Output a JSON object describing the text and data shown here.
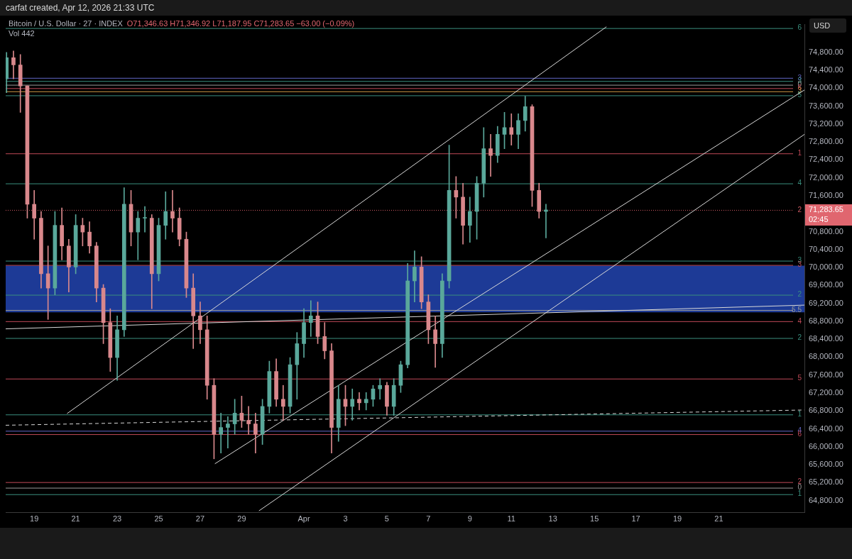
{
  "chart_data": {
    "type": "candlestick",
    "title": "Bitcoin / U.S. Dollar · 27 · INDEX",
    "subtitle": "O71,346.63 H71,346.92 L71,187.95 C71,283.65 −63.00 (−0.09%)",
    "ylabel": "USD",
    "annotations": [
      "carfat created, Apr 12, 2026 21:33 UTC",
      "Vol 442",
      "71,283.65",
      "02:45",
      "6",
      "3",
      "3",
      "0",
      "6",
      "3",
      "5",
      "1",
      "4",
      "2",
      "3",
      "3",
      "2",
      "5.5",
      "4",
      "2",
      "5",
      "1",
      "4",
      "6",
      "2",
      "0",
      "1"
    ],
    "x": [
      "2026-03-17T16:00",
      "2026-03-18T00:00",
      "2026-03-18T08:00",
      "2026-03-18T16:00",
      "2026-03-19T00:00",
      "2026-03-19T08:00",
      "2026-03-19T16:00",
      "2026-03-20T00:00",
      "2026-03-20T08:00",
      "2026-03-20T16:00",
      "2026-03-21T00:00",
      "2026-03-21T08:00",
      "2026-03-21T16:00",
      "2026-03-22T00:00",
      "2026-03-22T08:00",
      "2026-03-22T16:00",
      "2026-03-23T00:00",
      "2026-03-23T08:00",
      "2026-03-23T16:00",
      "2026-03-24T00:00",
      "2026-03-24T08:00",
      "2026-03-24T16:00",
      "2026-03-25T00:00",
      "2026-03-25T08:00",
      "2026-03-25T16:00",
      "2026-03-26T00:00",
      "2026-03-26T08:00",
      "2026-03-26T16:00",
      "2026-03-27T00:00",
      "2026-03-27T08:00",
      "2026-03-27T16:00",
      "2026-03-28T00:00",
      "2026-03-28T08:00",
      "2026-03-28T16:00",
      "2026-03-29T00:00",
      "2026-03-29T08:00",
      "2026-03-29T16:00",
      "2026-03-30T00:00",
      "2026-03-30T08:00",
      "2026-03-30T16:00",
      "2026-03-31T00:00",
      "2026-03-31T08:00",
      "2026-03-31T16:00",
      "2026-04-01T00:00",
      "2026-04-01T08:00",
      "2026-04-01T16:00",
      "2026-04-02T00:00",
      "2026-04-02T08:00",
      "2026-04-02T16:00",
      "2026-04-03T00:00",
      "2026-04-03T08:00",
      "2026-04-03T16:00",
      "2026-04-04T00:00",
      "2026-04-04T08:00",
      "2026-04-04T16:00",
      "2026-04-05T00:00",
      "2026-04-05T08:00",
      "2026-04-05T16:00",
      "2026-04-06T00:00",
      "2026-04-06T08:00",
      "2026-04-06T16:00",
      "2026-04-07T00:00",
      "2026-04-07T08:00",
      "2026-04-07T16:00",
      "2026-04-08T00:00",
      "2026-04-08T08:00",
      "2026-04-08T16:00",
      "2026-04-09T00:00",
      "2026-04-09T08:00",
      "2026-04-09T16:00",
      "2026-04-10T00:00",
      "2026-04-10T08:00",
      "2026-04-10T16:00",
      "2026-04-11T00:00",
      "2026-04-11T08:00",
      "2026-04-11T16:00",
      "2026-04-12T00:00",
      "2026-04-12T08:00",
      "2026-04-12T16:00"
    ],
    "ohlc": [
      [
        74210,
        74800,
        73900,
        74680
      ],
      [
        74680,
        74830,
        74210,
        74520
      ],
      [
        74520,
        74750,
        73460,
        74050
      ],
      [
        74050,
        74050,
        71100,
        71410
      ],
      [
        71410,
        71720,
        70630,
        71100
      ],
      [
        71100,
        71250,
        69540,
        69860
      ],
      [
        69860,
        70480,
        68840,
        69540
      ],
      [
        69540,
        71250,
        69390,
        70940
      ],
      [
        70940,
        71330,
        70170,
        70480
      ],
      [
        70480,
        70630,
        69450,
        70010
      ],
      [
        70010,
        71180,
        69860,
        70940
      ],
      [
        70940,
        71100,
        70480,
        70790
      ],
      [
        70790,
        71020,
        70320,
        70480
      ],
      [
        70480,
        70560,
        69230,
        69540
      ],
      [
        69540,
        69620,
        68300,
        68770
      ],
      [
        68770,
        69080,
        67680,
        67990
      ],
      [
        67990,
        68920,
        67480,
        68610
      ],
      [
        68610,
        71780,
        68460,
        71410
      ],
      [
        71410,
        71720,
        70480,
        70790
      ],
      [
        70790,
        71250,
        70170,
        71100
      ],
      [
        71100,
        71360,
        70790,
        71100
      ],
      [
        71100,
        71180,
        69080,
        69860
      ],
      [
        69860,
        71100,
        69700,
        70940
      ],
      [
        70940,
        71690,
        70630,
        71250
      ],
      [
        71250,
        71720,
        70790,
        71100
      ],
      [
        71100,
        71330,
        70480,
        70630
      ],
      [
        70630,
        70790,
        69330,
        69540
      ],
      [
        69540,
        69860,
        68190,
        68920
      ],
      [
        68920,
        69230,
        68300,
        68610
      ],
      [
        68610,
        68920,
        67060,
        67370
      ],
      [
        67370,
        67520,
        65730,
        66280
      ],
      [
        66280,
        66750,
        65860,
        66430
      ],
      [
        66430,
        66670,
        65970,
        66510
      ],
      [
        66510,
        67060,
        66280,
        66750
      ],
      [
        66750,
        67130,
        66430,
        66590
      ],
      [
        66590,
        66900,
        66280,
        66510
      ],
      [
        66510,
        66750,
        65860,
        66280
      ],
      [
        66280,
        67060,
        66050,
        66900
      ],
      [
        66900,
        67910,
        66750,
        67680
      ],
      [
        67680,
        67960,
        66900,
        67060
      ],
      [
        67060,
        67370,
        66590,
        66900
      ],
      [
        66900,
        67990,
        66750,
        67830
      ],
      [
        67830,
        68550,
        67060,
        68300
      ],
      [
        68300,
        69080,
        67990,
        68770
      ],
      [
        68770,
        69260,
        68460,
        68920
      ],
      [
        68920,
        69230,
        68300,
        68460
      ],
      [
        68460,
        68770,
        67960,
        68140
      ],
      [
        68140,
        68300,
        65860,
        66430
      ],
      [
        66430,
        67370,
        66120,
        67060
      ],
      [
        67060,
        67370,
        66470,
        66900
      ],
      [
        66900,
        67290,
        66590,
        67060
      ],
      [
        67060,
        67210,
        66820,
        66980
      ],
      [
        66980,
        67210,
        66820,
        67060
      ],
      [
        67060,
        67370,
        66900,
        67290
      ],
      [
        67290,
        67520,
        67060,
        67370
      ],
      [
        67370,
        67440,
        66700,
        66900
      ],
      [
        66900,
        67520,
        66700,
        67370
      ],
      [
        67370,
        67910,
        67210,
        67830
      ],
      [
        67830,
        70090,
        67760,
        69700
      ],
      [
        69700,
        70370,
        69230,
        70010
      ],
      [
        70010,
        70240,
        69080,
        69230
      ],
      [
        69230,
        69390,
        68300,
        68610
      ],
      [
        68610,
        68920,
        67770,
        68300
      ],
      [
        68300,
        69860,
        67990,
        69700
      ],
      [
        69700,
        72730,
        69540,
        71720
      ],
      [
        71720,
        72030,
        71100,
        71570
      ],
      [
        71570,
        71880,
        70520,
        70940
      ],
      [
        70940,
        71570,
        70560,
        71250
      ],
      [
        71250,
        72030,
        70630,
        71880
      ],
      [
        71880,
        73120,
        71570,
        72650
      ],
      [
        72650,
        72970,
        72030,
        72500
      ],
      [
        72500,
        73150,
        72340,
        72970
      ],
      [
        72970,
        73460,
        72650,
        73120
      ],
      [
        73120,
        73430,
        72730,
        72970
      ],
      [
        72970,
        73430,
        72650,
        73280
      ],
      [
        73280,
        73820,
        73040,
        73590
      ],
      [
        73590,
        73630,
        71360,
        71720
      ],
      [
        71720,
        71880,
        71100,
        71250
      ],
      [
        71250,
        71410,
        70660,
        71283.65
      ]
    ],
    "series": [
      {
        "type": "line",
        "color": "#d9d9d9",
        "x": [
          "2026-03-20T14:00",
          "2026-04-15T14:00"
        ],
        "values": [
          66740,
          75370
        ]
      },
      {
        "type": "line",
        "color": "#d9d9d9",
        "x": [
          "2026-03-27T17:00",
          "2026-04-25T03:00"
        ],
        "values": [
          65620,
          73960
        ]
      },
      {
        "type": "line",
        "color": "#d9d9d9",
        "x": [
          "2026-03-29T20:00",
          "2026-04-25T03:00"
        ],
        "values": [
          64570,
          72970
        ]
      },
      {
        "type": "line",
        "color": "#d9d9d9",
        "x": [
          "2026-03-17T15:00",
          "2026-04-25T03:00"
        ],
        "values": [
          68630,
          69160
        ]
      },
      {
        "type": "line",
        "color": "#d9d9d9",
        "line_style": "dashed",
        "x": [
          "2026-03-17T15:00",
          "2026-04-25T03:00"
        ],
        "values": [
          66480,
          66820
        ]
      }
    ],
    "bands": [
      {
        "axis": "y",
        "from": 69000,
        "to": 70040,
        "color": "#1d3a96"
      }
    ],
    "ref_lines": [
      {
        "axis": "y",
        "value": 75340,
        "color": "#3a8f7f"
      },
      {
        "axis": "y",
        "value": 74230,
        "color": "#6368c8"
      },
      {
        "axis": "y",
        "value": 74160,
        "color": "#3a8f7f"
      },
      {
        "axis": "y",
        "value": 74075,
        "color": "#9a9a9a"
      },
      {
        "axis": "y",
        "value": 74000,
        "color": "#c04a58"
      },
      {
        "axis": "y",
        "value": 73930,
        "color": "#d09a45"
      },
      {
        "axis": "y",
        "value": 73840,
        "color": "#3a8f7f"
      },
      {
        "axis": "y",
        "value": 72545,
        "color": "#c04a58"
      },
      {
        "axis": "y",
        "value": 71875,
        "color": "#3a8f7f"
      },
      {
        "axis": "y",
        "value": 71283.65,
        "color": "#d05a64",
        "line_style": "dotted"
      },
      {
        "axis": "y",
        "value": 70150,
        "color": "#3a8f7f"
      },
      {
        "axis": "y",
        "value": 70055,
        "color": "#c04a58"
      },
      {
        "axis": "y",
        "value": 69390,
        "color": "#3a8f7f"
      },
      {
        "axis": "y",
        "value": 69050,
        "color": "#9a9a9a"
      },
      {
        "axis": "y",
        "value": 68800,
        "color": "#c04a58"
      },
      {
        "axis": "y",
        "value": 68425,
        "color": "#3a8f7f"
      },
      {
        "axis": "y",
        "value": 67520,
        "color": "#c04a58"
      },
      {
        "axis": "y",
        "value": 66720,
        "color": "#3a8f7f"
      },
      {
        "axis": "y",
        "value": 66355,
        "color": "#6368c8"
      },
      {
        "axis": "y",
        "value": 66280,
        "color": "#c04a58"
      },
      {
        "axis": "y",
        "value": 65210,
        "color": "#c04a58"
      },
      {
        "axis": "y",
        "value": 65085,
        "color": "#9a9a9a"
      },
      {
        "axis": "y",
        "value": 64940,
        "color": "#3a8f7f"
      }
    ],
    "xlim": [
      "2026-03-17T15:00",
      "2026-04-25T03:00"
    ],
    "xticks": [
      {
        "value": "2026-03-19",
        "label": "19"
      },
      {
        "value": "2026-03-21",
        "label": "21"
      },
      {
        "value": "2026-03-23",
        "label": "23"
      },
      {
        "value": "2026-03-25",
        "label": "25"
      },
      {
        "value": "2026-03-27",
        "label": "27"
      },
      {
        "value": "2026-03-29",
        "label": "29"
      },
      {
        "value": "2026-04-01",
        "label": "Apr"
      },
      {
        "value": "2026-04-03",
        "label": "3"
      },
      {
        "value": "2026-04-05",
        "label": "5"
      },
      {
        "value": "2026-04-07",
        "label": "7"
      },
      {
        "value": "2026-04-09",
        "label": "9"
      },
      {
        "value": "2026-04-11",
        "label": "11"
      },
      {
        "value": "2026-04-13",
        "label": "13"
      },
      {
        "value": "2026-04-15",
        "label": "15"
      },
      {
        "value": "2026-04-17",
        "label": "17"
      },
      {
        "value": "2026-04-19",
        "label": "19"
      },
      {
        "value": "2026-04-21",
        "label": "21"
      }
    ],
    "ylim": [
      64540,
      75420
    ],
    "yticks": [
      {
        "value": 64800,
        "label": "64,800.00"
      },
      {
        "value": 65200,
        "label": "65,200.00"
      },
      {
        "value": 65600,
        "label": "65,600.00"
      },
      {
        "value": 66000,
        "label": "66,000.00"
      },
      {
        "value": 66400,
        "label": "66,400.00"
      },
      {
        "value": 66800,
        "label": "66,800.00"
      },
      {
        "value": 67200,
        "label": "67,200.00"
      },
      {
        "value": 67600,
        "label": "67,600.00"
      },
      {
        "value": 68000,
        "label": "68,000.00"
      },
      {
        "value": 68400,
        "label": "68,400.00"
      },
      {
        "value": 68800,
        "label": "68,800.00"
      },
      {
        "value": 69200,
        "label": "69,200.00"
      },
      {
        "value": 69600,
        "label": "69,600.00"
      },
      {
        "value": 70000,
        "label": "70,000.00"
      },
      {
        "value": 70400,
        "label": "70,400.00"
      },
      {
        "value": 70800,
        "label": "70,800.00"
      },
      {
        "value": 71600,
        "label": "71,600.00"
      },
      {
        "value": 72000,
        "label": "72,000.00"
      },
      {
        "value": 72400,
        "label": "72,400.00"
      },
      {
        "value": 72800,
        "label": "72,800.00"
      },
      {
        "value": 73200,
        "label": "73,200.00"
      },
      {
        "value": 73600,
        "label": "73,600.00"
      },
      {
        "value": 74000,
        "label": "74,000.00"
      },
      {
        "value": 74400,
        "label": "74,400.00"
      },
      {
        "value": 74800,
        "label": "74,800.00"
      }
    ],
    "grid": false,
    "legend": false
  }
}
